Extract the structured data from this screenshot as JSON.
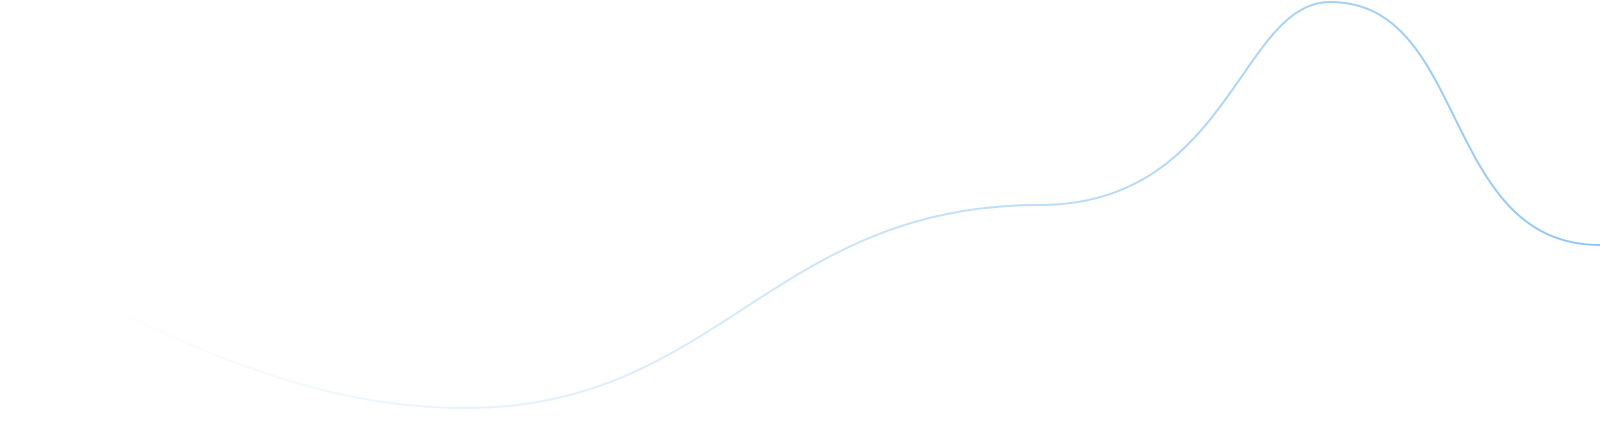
{
  "decoration": {
    "type": "wave-line",
    "colors": {
      "line_end": "#8ec6f7",
      "line_mid": "#cfe5fb",
      "background": "#ffffff"
    }
  }
}
